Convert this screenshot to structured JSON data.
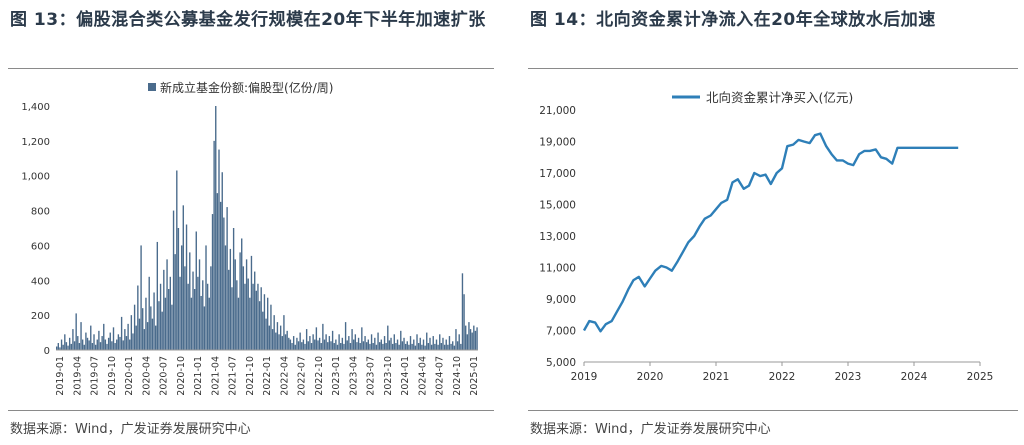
{
  "left": {
    "title": "图 13：偏股混合类公募基金发行规模在20年下半年加速扩张",
    "source": "数据来源：Wind，广发证券发展研究中心"
  },
  "right": {
    "title": "图 14：北向资金累计净流入在20年全球放水后加速",
    "source": "数据来源：Wind，广发证券发展研究中心"
  },
  "chart_data": [
    {
      "type": "bar",
      "title": "",
      "legend": "新成立基金份额:偏股型(亿份/周)",
      "legend_position": "top-center",
      "color": "#4a6b8c",
      "ylim": [
        0,
        1400
      ],
      "yticks": [
        "0",
        "200",
        "400",
        "600",
        "800",
        "1,000",
        "1,200",
        "1,400"
      ],
      "xticks": [
        "2019-01",
        "2019-04",
        "2019-07",
        "2019-10",
        "2020-01",
        "2020-04",
        "2020-07",
        "2020-10",
        "2021-01",
        "2021-04",
        "2021-07",
        "2021-10",
        "2022-01",
        "2022-04",
        "2022-07",
        "2022-10",
        "2023-01",
        "2023-04",
        "2023-07",
        "2023-10",
        "2024-01",
        "2024-04",
        "2024-07",
        "2024-10",
        "2025-01"
      ],
      "grid": false,
      "values": [
        20,
        40,
        15,
        60,
        30,
        90,
        45,
        25,
        70,
        35,
        120,
        50,
        210,
        80,
        40,
        160,
        60,
        30,
        100,
        70,
        55,
        140,
        40,
        90,
        30,
        60,
        110,
        45,
        80,
        150,
        60,
        35,
        70,
        100,
        50,
        130,
        40,
        60,
        90,
        75,
        190,
        55,
        120,
        80,
        150,
        60,
        200,
        95,
        260,
        140,
        370,
        180,
        600,
        240,
        120,
        300,
        160,
        420,
        250,
        180,
        330,
        140,
        620,
        280,
        380,
        220,
        460,
        300,
        520,
        350,
        420,
        260,
        800,
        550,
        1030,
        700,
        420,
        600,
        830,
        480,
        720,
        380,
        560,
        300,
        450,
        350,
        680,
        420,
        520,
        310,
        400,
        250,
        600,
        380,
        300,
        480,
        780,
        1200,
        1400,
        900,
        1150,
        850,
        1020,
        760,
        600,
        820,
        460,
        580,
        360,
        700,
        520,
        400,
        300,
        560,
        640,
        480,
        380,
        520,
        410,
        300,
        540,
        380,
        450,
        340,
        380,
        280,
        360,
        220,
        320,
        180,
        300,
        140,
        260,
        120,
        200,
        100,
        160,
        90,
        140,
        80,
        200,
        90,
        110,
        70,
        60,
        40,
        80,
        30,
        70,
        50,
        100,
        45,
        60,
        35,
        120,
        50,
        80,
        40,
        90,
        60,
        130,
        55,
        70,
        40,
        150,
        60,
        90,
        45,
        80,
        50,
        110,
        40,
        60,
        30,
        90,
        40,
        70,
        35,
        160,
        55,
        80,
        40,
        120,
        60,
        90,
        45,
        70,
        40,
        130,
        50,
        80,
        45,
        60,
        35,
        90,
        40,
        70,
        30,
        100,
        45,
        60,
        35,
        80,
        40,
        140,
        55,
        70,
        35,
        90,
        40,
        60,
        30,
        110,
        50,
        70,
        35,
        50,
        30,
        80,
        35,
        60,
        25,
        90,
        40,
        70,
        30,
        60,
        25,
        100,
        40,
        70,
        30,
        80,
        35,
        60,
        30,
        90,
        40,
        70,
        30,
        60,
        30,
        80,
        35,
        50,
        25,
        120,
        50,
        90,
        35,
        440,
        320,
        140,
        90,
        160,
        120,
        100,
        140,
        110,
        130
      ]
    },
    {
      "type": "line",
      "title": "",
      "legend": "北向资金累计净买入(亿元)",
      "legend_position": "top-center",
      "color": "#2e7fb8",
      "ylim": [
        5000,
        21000
      ],
      "yticks": [
        "5,000",
        "7,000",
        "9,000",
        "11,000",
        "13,000",
        "15,000",
        "17,000",
        "19,000",
        "21,000"
      ],
      "xlim": [
        2019,
        2025
      ],
      "xticks": [
        "2019",
        "2020",
        "2021",
        "2022",
        "2023",
        "2024",
        "2025"
      ],
      "grid": false,
      "x": [
        2019.0,
        2019.08,
        2019.17,
        2019.25,
        2019.33,
        2019.42,
        2019.5,
        2019.58,
        2019.67,
        2019.75,
        2019.83,
        2019.92,
        2020.0,
        2020.08,
        2020.17,
        2020.25,
        2020.33,
        2020.42,
        2020.5,
        2020.58,
        2020.67,
        2020.75,
        2020.83,
        2020.92,
        2021.0,
        2021.08,
        2021.17,
        2021.25,
        2021.33,
        2021.42,
        2021.5,
        2021.58,
        2021.67,
        2021.75,
        2021.83,
        2021.92,
        2022.0,
        2022.08,
        2022.17,
        2022.25,
        2022.33,
        2022.42,
        2022.5,
        2022.58,
        2022.67,
        2022.75,
        2022.83,
        2022.92,
        2023.0,
        2023.08,
        2023.17,
        2023.25,
        2023.33,
        2023.42,
        2023.5,
        2023.58,
        2023.67,
        2023.75,
        2023.83,
        2023.92,
        2024.0,
        2024.08,
        2024.17,
        2024.25,
        2024.33,
        2024.42,
        2024.5,
        2024.58,
        2024.67
      ],
      "values": [
        7000,
        7600,
        7500,
        6950,
        7400,
        7600,
        8200,
        8800,
        9600,
        10200,
        10400,
        9800,
        10300,
        10800,
        11100,
        11000,
        10800,
        11400,
        12000,
        12600,
        13000,
        13600,
        14100,
        14300,
        14700,
        15100,
        15300,
        16400,
        16600,
        16000,
        16200,
        17000,
        16800,
        16900,
        16300,
        17000,
        17300,
        18700,
        18800,
        19100,
        19000,
        18900,
        19400,
        19500,
        18700,
        18200,
        17800,
        17800,
        17600,
        17500,
        18200,
        18400,
        18400,
        18500,
        18000,
        17900,
        17600,
        18600,
        18600,
        18600,
        18600,
        18600,
        18600,
        18600,
        18600,
        18600,
        18600,
        18600,
        18600
      ]
    }
  ]
}
